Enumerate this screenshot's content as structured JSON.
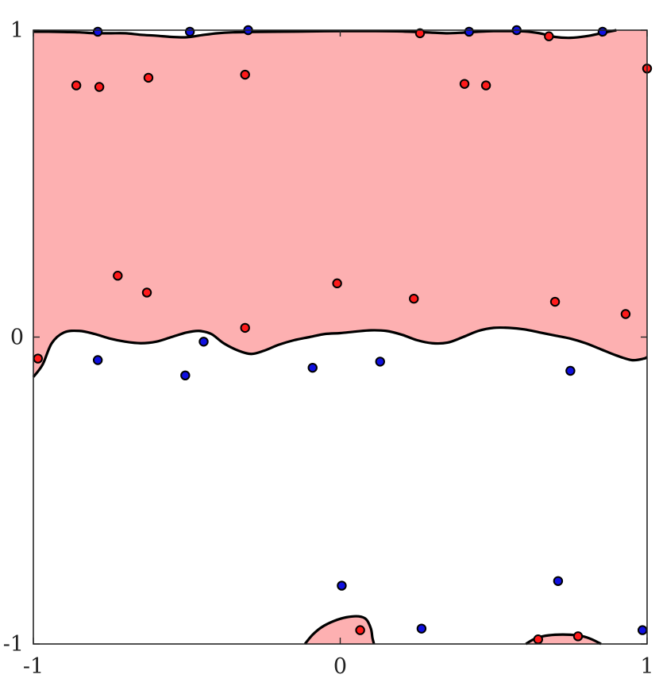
{
  "chart_data": {
    "type": "scatter",
    "title": "",
    "xlabel": "",
    "ylabel": "",
    "xlim": [
      -1,
      1
    ],
    "ylim": [
      -1,
      1
    ],
    "xticks": [
      -1,
      0,
      1
    ],
    "yticks": [
      -1,
      0,
      1
    ],
    "xtick_labels": [
      "-1",
      "0",
      "1"
    ],
    "ytick_labels": [
      "-1",
      "0",
      "1"
    ],
    "grid": false,
    "legend": "none",
    "colors": {
      "region_fill": "#fdb0b1",
      "boundary": "#000000",
      "class_red": "#ff1a1a",
      "class_blue": "#1010e0",
      "marker_edge": "#000000",
      "axes": "#262626"
    },
    "series": [
      {
        "class": "red",
        "points": [
          [
            -0.985,
            -0.07
          ],
          [
            -0.86,
            0.82
          ],
          [
            -0.785,
            0.815
          ],
          [
            -0.625,
            0.845
          ],
          [
            -0.725,
            0.2
          ],
          [
            -0.63,
            0.145
          ],
          [
            -0.31,
            0.855
          ],
          [
            -0.31,
            0.03
          ],
          [
            -0.01,
            0.175
          ],
          [
            0.24,
            0.125
          ],
          [
            0.26,
            0.99
          ],
          [
            0.405,
            0.825
          ],
          [
            0.475,
            0.82
          ],
          [
            0.68,
            0.98
          ],
          [
            0.7,
            0.115
          ],
          [
            0.93,
            0.075
          ],
          [
            1.0,
            0.875
          ],
          [
            0.065,
            -0.955
          ],
          [
            0.645,
            -0.985
          ],
          [
            0.775,
            -0.975
          ]
        ]
      },
      {
        "class": "blue",
        "points": [
          [
            -0.79,
            0.995
          ],
          [
            -0.49,
            0.995
          ],
          [
            -0.3,
            1.0
          ],
          [
            0.42,
            0.995
          ],
          [
            0.575,
            1.0
          ],
          [
            0.855,
            0.995
          ],
          [
            -0.79,
            -0.075
          ],
          [
            -0.445,
            -0.015
          ],
          [
            -0.505,
            -0.125
          ],
          [
            -0.09,
            -0.1
          ],
          [
            0.13,
            -0.08
          ],
          [
            0.75,
            -0.11
          ],
          [
            0.005,
            -0.81
          ],
          [
            0.265,
            -0.95
          ],
          [
            0.71,
            -0.795
          ],
          [
            0.985,
            -0.955
          ]
        ]
      }
    ],
    "regions": [
      {
        "name": "upper",
        "boundary": [
          [
            -1.0,
            -0.13
          ],
          [
            -0.97,
            -0.09
          ],
          [
            -0.94,
            -0.02
          ],
          [
            -0.9,
            0.015
          ],
          [
            -0.85,
            0.02
          ],
          [
            -0.8,
            0.01
          ],
          [
            -0.75,
            -0.005
          ],
          [
            -0.7,
            -0.015
          ],
          [
            -0.65,
            -0.02
          ],
          [
            -0.6,
            -0.015
          ],
          [
            -0.55,
            0.0
          ],
          [
            -0.5,
            0.015
          ],
          [
            -0.46,
            0.02
          ],
          [
            -0.42,
            0.01
          ],
          [
            -0.38,
            -0.02
          ],
          [
            -0.33,
            -0.045
          ],
          [
            -0.29,
            -0.055
          ],
          [
            -0.25,
            -0.045
          ],
          [
            -0.2,
            -0.025
          ],
          [
            -0.15,
            -0.01
          ],
          [
            -0.1,
            0.0
          ],
          [
            -0.05,
            0.01
          ],
          [
            0.0,
            0.013
          ],
          [
            0.05,
            0.018
          ],
          [
            0.1,
            0.022
          ],
          [
            0.15,
            0.02
          ],
          [
            0.2,
            0.008
          ],
          [
            0.25,
            -0.01
          ],
          [
            0.3,
            -0.02
          ],
          [
            0.35,
            -0.018
          ],
          [
            0.4,
            0.0
          ],
          [
            0.45,
            0.02
          ],
          [
            0.5,
            0.03
          ],
          [
            0.55,
            0.03
          ],
          [
            0.6,
            0.025
          ],
          [
            0.65,
            0.015
          ],
          [
            0.7,
            0.005
          ],
          [
            0.75,
            -0.005
          ],
          [
            0.8,
            -0.02
          ],
          [
            0.85,
            -0.04
          ],
          [
            0.9,
            -0.06
          ],
          [
            0.95,
            -0.075
          ],
          [
            0.99,
            -0.07
          ],
          [
            1.0,
            -0.065
          ]
        ],
        "top": [
          [
            -1.0,
            0.995
          ],
          [
            -0.95,
            0.995
          ],
          [
            -0.9,
            0.994
          ],
          [
            -0.85,
            0.993
          ],
          [
            -0.8,
            0.99
          ],
          [
            -0.75,
            0.99
          ],
          [
            -0.7,
            0.99
          ],
          [
            -0.65,
            0.985
          ],
          [
            -0.6,
            0.982
          ],
          [
            -0.55,
            0.978
          ],
          [
            -0.5,
            0.977
          ],
          [
            -0.45,
            0.984
          ],
          [
            -0.4,
            0.99
          ],
          [
            -0.35,
            0.993
          ],
          [
            -0.3,
            0.994
          ],
          [
            -0.2,
            0.995
          ],
          [
            -0.1,
            0.996
          ],
          [
            0.0,
            0.997
          ],
          [
            0.1,
            0.997
          ],
          [
            0.2,
            0.996
          ],
          [
            0.3,
            0.992
          ],
          [
            0.35,
            0.99
          ],
          [
            0.4,
            0.992
          ],
          [
            0.45,
            0.995
          ],
          [
            0.5,
            0.997
          ],
          [
            0.55,
            0.997
          ],
          [
            0.6,
            0.996
          ],
          [
            0.65,
            0.99
          ],
          [
            0.7,
            0.978
          ],
          [
            0.75,
            0.975
          ],
          [
            0.8,
            0.98
          ],
          [
            0.85,
            0.99
          ],
          [
            0.88,
            0.996
          ],
          [
            0.9,
            1.0
          ]
        ]
      },
      {
        "name": "bottom-left",
        "boundary": [
          [
            -0.115,
            -1.0
          ],
          [
            -0.09,
            -0.97
          ],
          [
            -0.06,
            -0.945
          ],
          [
            -0.02,
            -0.925
          ],
          [
            0.02,
            -0.913
          ],
          [
            0.06,
            -0.91
          ],
          [
            0.085,
            -0.92
          ],
          [
            0.1,
            -0.95
          ],
          [
            0.105,
            -0.98
          ],
          [
            0.11,
            -1.0
          ]
        ]
      },
      {
        "name": "bottom-right",
        "boundary": [
          [
            0.605,
            -1.0
          ],
          [
            0.63,
            -0.985
          ],
          [
            0.66,
            -0.975
          ],
          [
            0.7,
            -0.97
          ],
          [
            0.75,
            -0.97
          ],
          [
            0.79,
            -0.975
          ],
          [
            0.82,
            -0.985
          ],
          [
            0.85,
            -1.0
          ]
        ]
      }
    ]
  }
}
